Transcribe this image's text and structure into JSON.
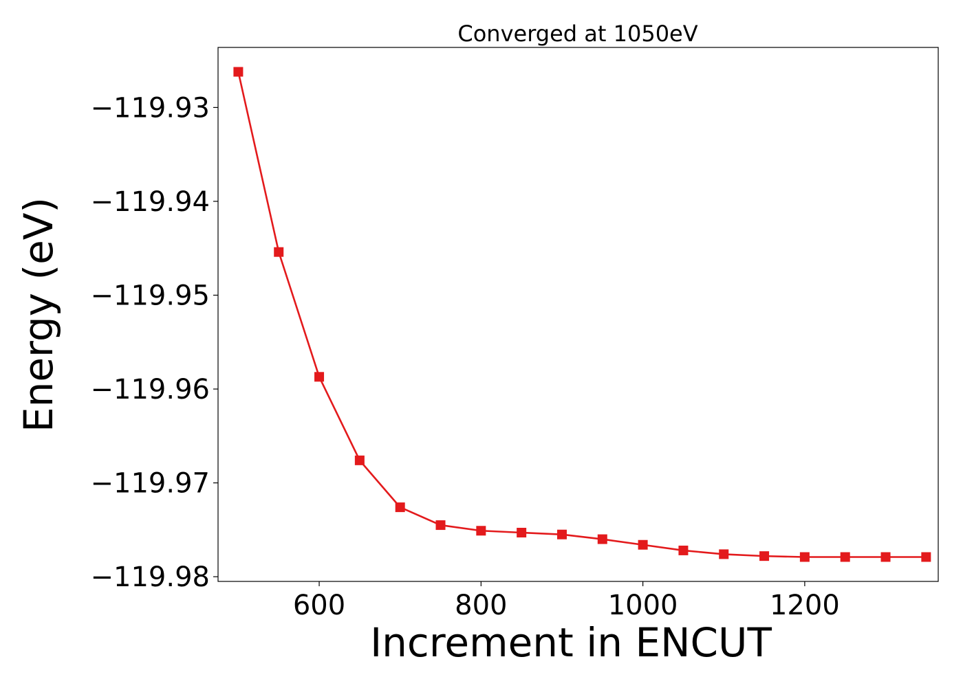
{
  "chart_data": {
    "type": "line",
    "title": "Converged at 1050eV",
    "xlabel": "Increment in ENCUT",
    "ylabel": "Energy (eV)",
    "xlim": [
      475,
      1365
    ],
    "ylim": [
      -119.9805,
      -119.9236
    ],
    "xticks": [
      600,
      800,
      1000,
      1200
    ],
    "xtick_labels": [
      "600",
      "800",
      "1000",
      "1200"
    ],
    "yticks": [
      -119.93,
      -119.94,
      -119.95,
      -119.96,
      -119.97,
      -119.98
    ],
    "ytick_labels": [
      "−119.93",
      "−119.94",
      "−119.95",
      "−119.96",
      "−119.97",
      "−119.98"
    ],
    "grid": false,
    "series": [
      {
        "marker": "square",
        "color": "#e31a1c",
        "x": [
          500,
          550,
          600,
          650,
          700,
          750,
          800,
          850,
          900,
          950,
          1000,
          1050,
          1100,
          1150,
          1200,
          1250,
          1300,
          1350
        ],
        "y": [
          -119.9262,
          -119.9454,
          -119.9587,
          -119.9676,
          -119.9726,
          -119.9745,
          -119.9751,
          -119.9753,
          -119.9755,
          -119.976,
          -119.9766,
          -119.9772,
          -119.9776,
          -119.9778,
          -119.9779,
          -119.9779,
          -119.9779,
          -119.9779
        ]
      }
    ]
  }
}
